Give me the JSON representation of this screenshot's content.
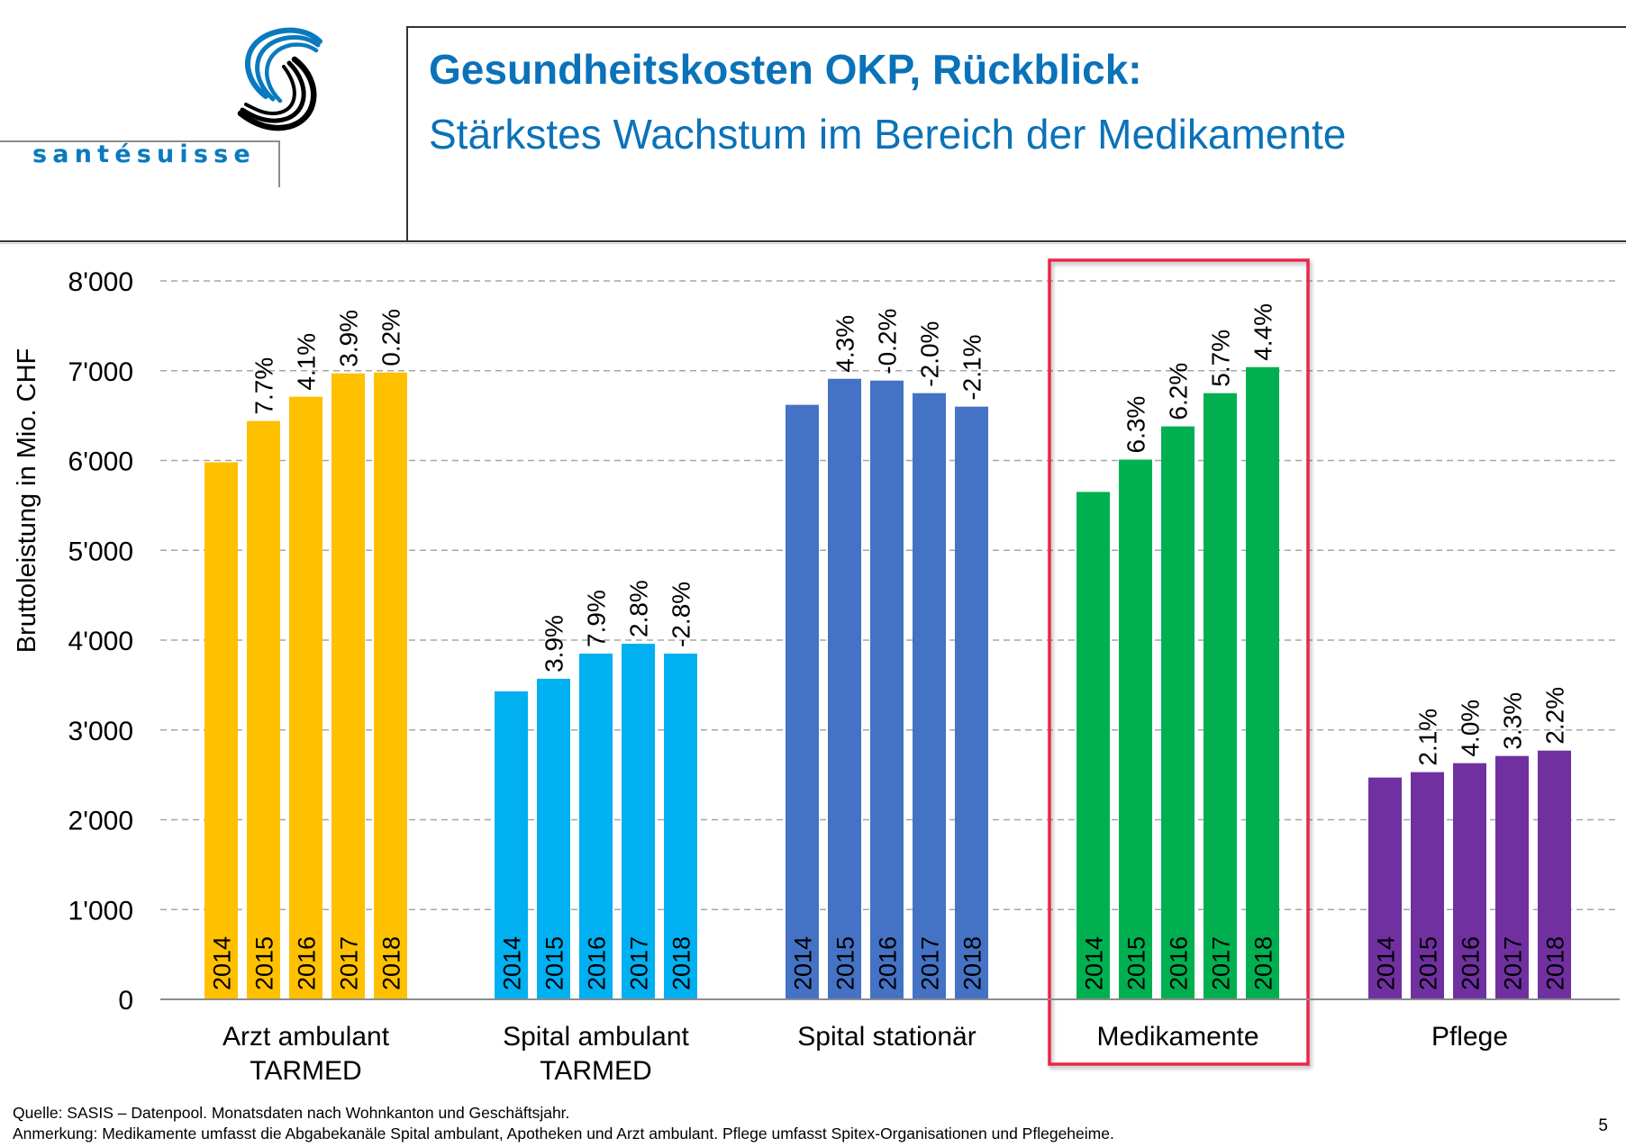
{
  "header": {
    "logo_text": "santésuisse",
    "title": "Gesundheitskosten OKP, Rückblick:",
    "subtitle": "Stärkstes Wachstum im Bereich der Medikamente"
  },
  "colors": {
    "title": "#0a72b8",
    "highlight_box": "#e8284a",
    "grid": "#a6a6a6"
  },
  "chart_data": {
    "type": "bar",
    "title": "",
    "xlabel": "",
    "ylabel": "Bruttoleistung in Mio. CHF",
    "ylim": [
      0,
      8000
    ],
    "yticks": [
      0,
      1000,
      2000,
      3000,
      4000,
      5000,
      6000,
      7000,
      8000
    ],
    "ytick_labels": [
      "0",
      "1'000",
      "2'000",
      "3'000",
      "4'000",
      "5'000",
      "6'000",
      "7'000",
      "8'000"
    ],
    "grid": true,
    "grid_style": "dashed horizontal",
    "years": [
      "2014",
      "2015",
      "2016",
      "2017",
      "2018"
    ],
    "highlighted_group": "Medikamente",
    "groups": [
      {
        "name": "Arzt ambulant TARMED",
        "label_lines": [
          "Arzt ambulant",
          "TARMED"
        ],
        "color": "#ffc000",
        "values": [
          5980,
          6440,
          6710,
          6970,
          6980
        ],
        "growth_labels": [
          "",
          "7.7%",
          "4.1%",
          "3.9%",
          "0.2%"
        ]
      },
      {
        "name": "Spital ambulant TARMED",
        "label_lines": [
          "Spital ambulant",
          "TARMED"
        ],
        "color": "#00b0f0",
        "values": [
          3430,
          3570,
          3850,
          3960,
          3850
        ],
        "growth_labels": [
          "",
          "3.9%",
          "7.9%",
          "2.8%",
          "-2.8%"
        ]
      },
      {
        "name": "Spital stationär",
        "label_lines": [
          "Spital stationär"
        ],
        "color": "#4472c4",
        "values": [
          6620,
          6910,
          6890,
          6750,
          6600
        ],
        "growth_labels": [
          "",
          "4.3%",
          "-0.2%",
          "-2.0%",
          "-2.1%"
        ]
      },
      {
        "name": "Medikamente",
        "label_lines": [
          "Medikamente"
        ],
        "color": "#00b050",
        "values": [
          5650,
          6010,
          6380,
          6750,
          7040
        ],
        "growth_labels": [
          "",
          "6.3%",
          "6.2%",
          "5.7%",
          "4.4%"
        ]
      },
      {
        "name": "Pflege",
        "label_lines": [
          "Pflege"
        ],
        "color": "#7030a0",
        "values": [
          2470,
          2530,
          2630,
          2710,
          2770
        ],
        "growth_labels": [
          "",
          "2.1%",
          "4.0%",
          "3.3%",
          "2.2%"
        ]
      }
    ]
  },
  "footer": {
    "source": "Quelle: SASIS – Datenpool. Monatsdaten nach Wohnkanton und Geschäftsjahr.",
    "note": "Anmerkung: Medikamente umfasst die Abgabekanäle Spital ambulant, Apotheken und Arzt ambulant. Pflege umfasst Spitex-Organisationen und Pflegeheime.",
    "page_number": "5"
  }
}
